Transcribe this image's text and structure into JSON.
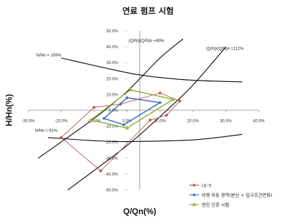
{
  "chart_data": {
    "type": "line",
    "title": "연료 펌프 시험",
    "xlabel": "Q/Qn(%)",
    "ylabel": "H/Hn(%)",
    "xlim": [
      -30,
      40
    ],
    "ylim": [
      -50,
      50
    ],
    "x_ticks": [
      "-30.0%",
      "-20.0%",
      "-10.0%",
      "0.0%",
      "10.0%",
      "20.0%",
      "30.0%",
      "40.0%"
    ],
    "y_ticks": [
      "50.0%",
      "40.0%",
      "30.0%",
      "20.0%",
      "10.0%",
      "0.0%",
      "-10.0%",
      "-20.0%",
      "-30.0%",
      "-40.0%",
      "-50.0%"
    ],
    "grid": false,
    "legend_position": "bottom-right",
    "annotations": [
      {
        "text": "N/Nn = 109%",
        "x": -27.5,
        "y": 34
      },
      {
        "text": "(Q/N)/(Q/N)n =90%",
        "x": 0.5,
        "y": 43
      },
      {
        "text": "(Q/N)/(Q/N)n =112%",
        "x": 24,
        "y": 38
      },
      {
        "text": "N/Nn = 91%",
        "x": -28,
        "y": -13.5
      }
    ],
    "boundary_curves": [
      {
        "points": [
          [
            -20,
            33
          ],
          [
            -5,
            26
          ],
          [
            5,
            22
          ],
          [
            20,
            19
          ],
          [
            35,
            18
          ]
        ]
      },
      {
        "points": [
          [
            -24,
            -17
          ],
          [
            -10,
            -19
          ],
          [
            0,
            -19.5
          ],
          [
            20,
            -18.5
          ],
          [
            35,
            -15
          ]
        ]
      },
      {
        "points": [
          [
            -27,
            -30
          ],
          [
            -10,
            -5
          ],
          [
            0,
            12
          ],
          [
            10,
            33
          ],
          [
            17,
            45
          ]
        ]
      },
      {
        "points": [
          [
            -18,
            -50
          ],
          [
            0,
            -22
          ],
          [
            12,
            0
          ],
          [
            20,
            16
          ],
          [
            30,
            40
          ]
        ]
      }
    ],
    "series": [
      {
        "name": "LE-5",
        "color": "#c0504d",
        "marker": "diamond",
        "x": [
          -10,
          -2,
          10,
          16,
          12,
          7,
          -8,
          -20,
          -10
        ],
        "y": [
          2,
          4,
          11,
          6,
          -3,
          -6,
          -38,
          -17,
          2
        ]
      },
      {
        "name": "비행 작동 영역(분산 + 입구조건변화)",
        "color": "#4472c4",
        "marker": "diamond",
        "x": [
          -7,
          0,
          10,
          -1,
          -7
        ],
        "y": [
          -5,
          8,
          5,
          -9,
          -5
        ]
      },
      {
        "name": "엔진 인증 시험",
        "color": "#8fb73e",
        "marker": "triangle",
        "x": [
          -11,
          1,
          14,
          0,
          -11
        ],
        "y": [
          -6,
          13,
          7,
          -11,
          -6
        ]
      }
    ]
  }
}
